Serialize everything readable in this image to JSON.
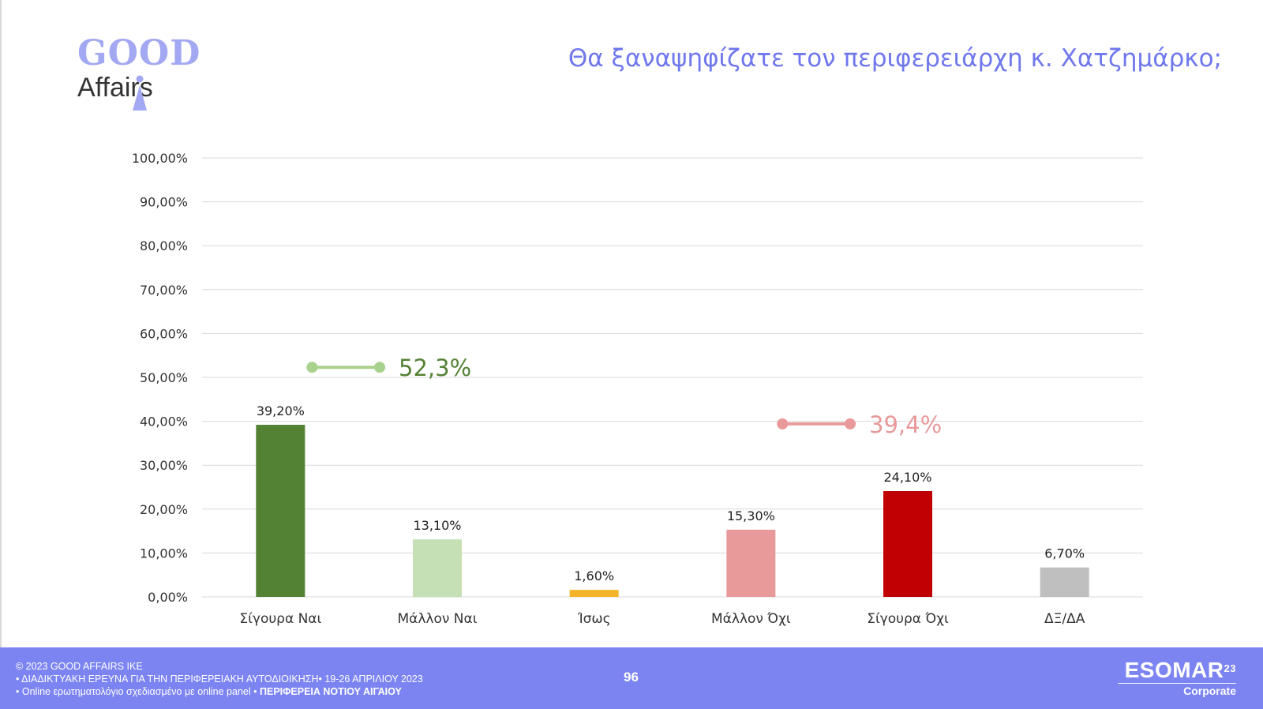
{
  "logo": {
    "line1": "GOOD",
    "line2": "Affairs"
  },
  "title": "Θα ξαναψηφίζατε τον περιφερειάρχη κ. Χατζημάρκο;",
  "chart_data": {
    "type": "bar",
    "categories": [
      "Σίγουρα Ναι",
      "Μάλλον Ναι",
      "Ίσως",
      "Μάλλον Όχι",
      "Σίγουρα Όχι",
      "ΔΞ/ΔΑ"
    ],
    "values": [
      39.2,
      13.1,
      1.6,
      15.3,
      24.1,
      6.7
    ],
    "value_labels": [
      "39,20%",
      "13,10%",
      "1,60%",
      "15,30%",
      "24,10%",
      "6,70%"
    ],
    "bar_colors": [
      "#548235",
      "#c5e0b4",
      "#f4b429",
      "#e8999a",
      "#c00000",
      "#bfbfbf"
    ],
    "ylim": [
      0,
      100
    ],
    "y_ticks": [
      0,
      10,
      20,
      30,
      40,
      50,
      60,
      70,
      80,
      90,
      100
    ],
    "y_tick_labels": [
      "0,00%",
      "10,00%",
      "20,00%",
      "30,00%",
      "40,00%",
      "50,00%",
      "60,00%",
      "70,00%",
      "80,00%",
      "90,00%",
      "100,00%"
    ],
    "grid": true,
    "annotations": [
      {
        "label": "52,3%",
        "value": 52.3,
        "color": "#a9d18e",
        "text_color": "#548235",
        "from_category": 0,
        "to_category": 1
      },
      {
        "label": "39,4%",
        "value": 39.4,
        "color": "#e8999a",
        "text_color": "#e8999a",
        "from_category": 3,
        "to_category": 4
      }
    ],
    "title": "Θα ξαναψηφίζατε τον περιφερειάρχη κ. Χατζημάρκο;",
    "xlabel": "",
    "ylabel": ""
  },
  "footer": {
    "copyright": "© 2023 GOOD AFFAIRS IKE",
    "line2": "• ΔΙΑΔΙΚΤΥΑΚΗ ΕΡΕΥΝΑ  ΓΙΑ ΤΗΝ ΠΕΡΙΦΕΡΕΙΑΚΗ ΑΥΤΟΔΙΟΙΚΗΣΗ• 19-26 ΑΠΡΙΛΙΟΥ 2023",
    "line3_prefix": "• Online ερωτηματολόγιο σχεδιασμένο με online panel  • ",
    "line3_bold": "ΠΕΡΙΦΕΡΕΙΑ ΝΟΤΙΟΥ ΑΙΓΑΙΟΥ",
    "page_number": "96",
    "esomar_name": "ESOMAR",
    "esomar_sup": "23",
    "esomar_sub": "Corporate"
  },
  "colors": {
    "title": "#6f78ec",
    "footer_bg": "#7c84f1",
    "logo_good": "#a3a8f2"
  }
}
